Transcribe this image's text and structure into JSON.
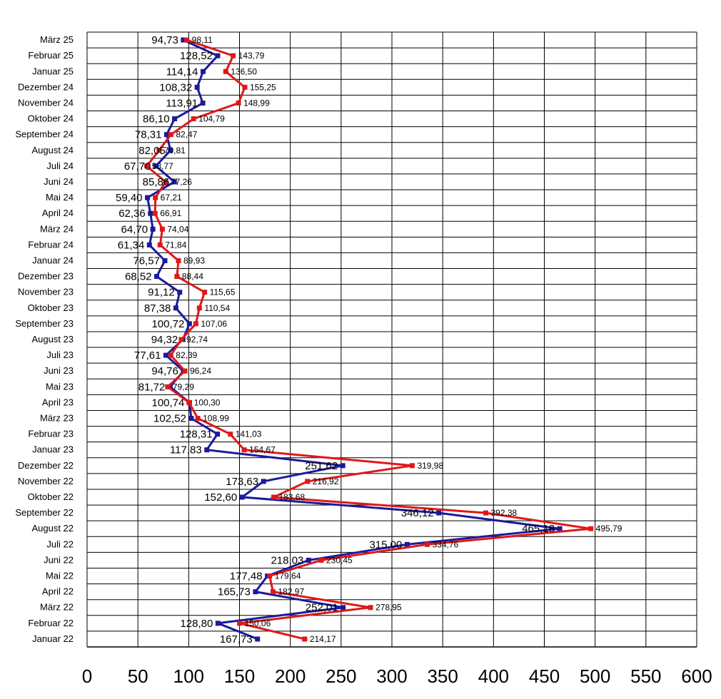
{
  "chart_data": {
    "type": "line",
    "orientation": "horizontal",
    "title": "",
    "xlabel": "",
    "ylabel": "",
    "xlim": [
      0,
      600
    ],
    "xticks": [
      0,
      50,
      100,
      150,
      200,
      250,
      300,
      350,
      400,
      450,
      500,
      550,
      600
    ],
    "grid": true,
    "legend": "none",
    "categories": [
      "März 25",
      "Februar 25",
      "Januar 25",
      "Dezember 24",
      "November 24",
      "Oktober 24",
      "September 24",
      "August 24",
      "Juli 24",
      "Juni 24",
      "Mai 24",
      "April 24",
      "März 24",
      "Februar 24",
      "Januar 24",
      "Dezember 23",
      "November 23",
      "Oktober 23",
      "September 23",
      "August 23",
      "Juli 23",
      "Juni 23",
      "Mai 23",
      "April 23",
      "März 23",
      "Februar 23",
      "Januar 23",
      "Dezember 22",
      "November 22",
      "Oktober 22",
      "September 22",
      "August 22",
      "Juli 22",
      "Juni 22",
      "Mai 22",
      "April 22",
      "März 22",
      "Februar 22",
      "Januar 22"
    ],
    "series": [
      {
        "color": "#1a1a9c",
        "values": [
          94.73,
          128.52,
          114.14,
          108.32,
          113.91,
          86.1,
          78.31,
          82.05,
          67.7,
          85.86,
          59.4,
          62.36,
          64.7,
          61.34,
          76.57,
          68.52,
          91.12,
          87.38,
          100.72,
          94.32,
          77.61,
          94.76,
          81.72,
          100.74,
          102.52,
          128.31,
          117.83,
          251.62,
          173.63,
          152.6,
          346.12,
          465.18,
          315.0,
          218.03,
          177.48,
          165.73,
          252.01,
          128.8,
          167.73
        ],
        "labels": [
          "94,73",
          "128,52",
          "114,14",
          "108,32",
          "113,91",
          "86,10",
          "78,31",
          "82,05",
          "67,70",
          "85,86",
          "59,40",
          "62,36",
          "64,70",
          "61,34",
          "76,57",
          "68,52",
          "91,12",
          "87,38",
          "100,72",
          "94,32",
          "77,61",
          "94,76",
          "81,72",
          "100,74",
          "102,52",
          "128,31",
          "117,83",
          "251,62",
          "173,63",
          "152,60",
          "346,12",
          "465,18",
          "315,00",
          "218,03",
          "177,48",
          "165,73",
          "252,01",
          "128,80",
          "167,73"
        ]
      },
      {
        "color": "#e01818",
        "values": [
          98.11,
          143.79,
          136.5,
          155.25,
          148.99,
          104.79,
          82.47,
          70.81,
          58.77,
          77.26,
          67.21,
          66.91,
          74.04,
          71.84,
          89.93,
          88.44,
          115.65,
          110.54,
          107.06,
          92.74,
          82.39,
          96.24,
          79.29,
          100.3,
          108.99,
          141.03,
          154.67,
          319.98,
          216.92,
          183.68,
          392.38,
          495.79,
          334.76,
          230.45,
          179.64,
          182.97,
          278.95,
          150.06,
          214.17
        ],
        "labels": [
          "98,11",
          "143,79",
          "136,50",
          "155,25",
          "148,99",
          "104,79",
          "82,47",
          "70,81",
          "58,77",
          "77,26",
          "67,21",
          "66,91",
          "74,04",
          "71,84",
          "89,93",
          "88,44",
          "115,65",
          "110,54",
          "107,06",
          "92,74",
          "82,39",
          "96,24",
          "79,29",
          "100,30",
          "108,99",
          "141,03",
          "154,67",
          "319,98",
          "216,92",
          "183,68",
          "392,38",
          "495,79",
          "334,76",
          "230,45",
          "179,64",
          "182,97",
          "278,95",
          "150,06",
          "214,17"
        ]
      }
    ]
  }
}
